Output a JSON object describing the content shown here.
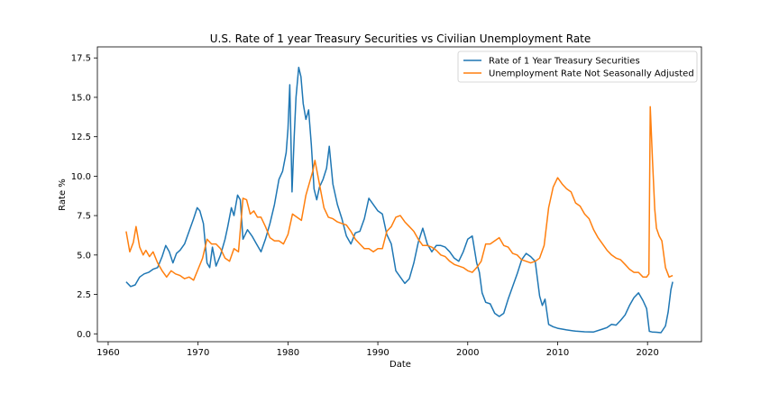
{
  "chart_data": {
    "type": "line",
    "title": "U.S. Rate of 1 year Treasury Securities vs Civilian Unemployment Rate",
    "xlabel": "Date",
    "ylabel": "Rate %",
    "xlim": [
      1958.8,
      2026.0
    ],
    "ylim": [
      -0.5,
      18.2
    ],
    "x_ticks": [
      1960,
      1970,
      1980,
      1990,
      2000,
      2010,
      2020
    ],
    "y_ticks": [
      0.0,
      2.5,
      5.0,
      7.5,
      10.0,
      12.5,
      15.0,
      17.5
    ],
    "x_tick_labels": [
      "1960",
      "1970",
      "1980",
      "1990",
      "2000",
      "2010",
      "2020"
    ],
    "y_tick_labels": [
      "0.0",
      "2.5",
      "5.0",
      "7.5",
      "10.0",
      "12.5",
      "15.0",
      "17.5"
    ],
    "grid": false,
    "legend_position": "upper-right",
    "series": [
      {
        "name": "Rate of 1 Year Treasury Securities",
        "color": "#1f77b4",
        "x": [
          1962.0,
          1962.5,
          1963.0,
          1963.5,
          1964.0,
          1964.5,
          1965.0,
          1965.5,
          1966.0,
          1966.4,
          1966.8,
          1967.2,
          1967.6,
          1968.0,
          1968.5,
          1969.0,
          1969.5,
          1969.9,
          1970.2,
          1970.6,
          1971.0,
          1971.3,
          1971.6,
          1972.0,
          1972.5,
          1973.0,
          1973.3,
          1973.7,
          1974.0,
          1974.4,
          1974.7,
          1975.0,
          1975.5,
          1976.0,
          1976.5,
          1977.0,
          1977.5,
          1978.0,
          1978.5,
          1979.0,
          1979.4,
          1979.8,
          1980.0,
          1980.2,
          1980.45,
          1980.7,
          1980.9,
          1981.2,
          1981.45,
          1981.7,
          1982.0,
          1982.3,
          1982.6,
          1982.9,
          1983.2,
          1983.5,
          1983.9,
          1984.3,
          1984.6,
          1985.0,
          1985.5,
          1986.0,
          1986.5,
          1987.0,
          1987.5,
          1988.0,
          1988.5,
          1989.0,
          1989.5,
          1990.0,
          1990.5,
          1991.0,
          1991.5,
          1992.0,
          1992.5,
          1993.0,
          1993.5,
          1994.0,
          1994.5,
          1995.0,
          1995.5,
          1996.0,
          1996.5,
          1997.0,
          1997.5,
          1998.0,
          1998.5,
          1999.0,
          1999.5,
          2000.0,
          2000.5,
          2001.0,
          2001.3,
          2001.6,
          2002.0,
          2002.5,
          2003.0,
          2003.5,
          2004.0,
          2004.5,
          2005.0,
          2005.5,
          2006.0,
          2006.5,
          2007.0,
          2007.5,
          2008.0,
          2008.3,
          2008.6,
          2009.0,
          2009.5,
          2010.0,
          2010.5,
          2011.0,
          2012.0,
          2013.0,
          2014.0,
          2015.0,
          2015.5,
          2016.0,
          2016.5,
          2017.0,
          2017.5,
          2018.0,
          2018.5,
          2019.0,
          2019.5,
          2019.9,
          2020.2,
          2020.5,
          2021.0,
          2021.5,
          2022.0,
          2022.3,
          2022.6,
          2022.8
        ],
        "values": [
          3.3,
          3.0,
          3.1,
          3.6,
          3.8,
          3.9,
          4.1,
          4.2,
          4.9,
          5.6,
          5.2,
          4.5,
          5.1,
          5.3,
          5.7,
          6.5,
          7.3,
          8.0,
          7.8,
          7.0,
          4.5,
          4.2,
          5.5,
          4.3,
          5.0,
          6.0,
          6.8,
          8.0,
          7.5,
          8.8,
          8.5,
          6.0,
          6.6,
          6.2,
          5.7,
          5.2,
          6.0,
          7.0,
          8.2,
          9.8,
          10.3,
          11.5,
          13.0,
          15.8,
          9.0,
          12.5,
          15.0,
          16.9,
          16.3,
          14.6,
          13.6,
          14.2,
          12.0,
          9.2,
          8.5,
          9.3,
          9.8,
          10.5,
          11.9,
          9.5,
          8.2,
          7.3,
          6.2,
          5.7,
          6.4,
          6.5,
          7.3,
          8.6,
          8.2,
          7.8,
          7.6,
          6.3,
          5.7,
          4.0,
          3.6,
          3.2,
          3.5,
          4.5,
          5.8,
          6.7,
          5.7,
          5.2,
          5.6,
          5.6,
          5.5,
          5.2,
          4.8,
          4.6,
          5.2,
          6.0,
          6.2,
          4.5,
          3.9,
          2.6,
          2.0,
          1.9,
          1.3,
          1.1,
          1.3,
          2.2,
          3.0,
          3.8,
          4.7,
          5.1,
          4.9,
          4.6,
          2.4,
          1.8,
          2.2,
          0.6,
          0.45,
          0.35,
          0.3,
          0.25,
          0.17,
          0.13,
          0.12,
          0.3,
          0.4,
          0.6,
          0.55,
          0.85,
          1.2,
          1.8,
          2.3,
          2.6,
          2.1,
          1.6,
          0.16,
          0.12,
          0.1,
          0.07,
          0.5,
          1.4,
          2.8,
          3.3
        ]
      },
      {
        "name": "Unemployment Rate Not Seasonally Adjusted",
        "color": "#ff7f0e",
        "x": [
          1962.0,
          1962.4,
          1962.8,
          1963.1,
          1963.5,
          1963.9,
          1964.2,
          1964.6,
          1965.0,
          1965.5,
          1966.0,
          1966.5,
          1967.0,
          1967.5,
          1968.0,
          1968.5,
          1969.0,
          1969.5,
          1970.0,
          1970.5,
          1971.0,
          1971.5,
          1972.0,
          1972.5,
          1973.0,
          1973.5,
          1974.0,
          1974.5,
          1975.0,
          1975.4,
          1975.8,
          1976.2,
          1976.6,
          1977.0,
          1977.5,
          1978.0,
          1978.5,
          1979.0,
          1979.5,
          1980.0,
          1980.5,
          1981.0,
          1981.5,
          1982.0,
          1982.4,
          1982.8,
          1983.0,
          1983.5,
          1984.0,
          1984.5,
          1985.0,
          1985.5,
          1986.0,
          1986.5,
          1987.0,
          1987.5,
          1988.0,
          1988.5,
          1989.0,
          1989.5,
          1990.0,
          1990.5,
          1991.0,
          1991.5,
          1992.0,
          1992.5,
          1993.0,
          1993.5,
          1994.0,
          1994.5,
          1995.0,
          1995.5,
          1996.0,
          1996.5,
          1997.0,
          1997.5,
          1998.0,
          1998.5,
          1999.0,
          1999.5,
          2000.0,
          2000.5,
          2001.0,
          2001.5,
          2002.0,
          2002.5,
          2003.0,
          2003.5,
          2004.0,
          2004.5,
          2005.0,
          2005.5,
          2006.0,
          2006.5,
          2007.0,
          2007.5,
          2008.0,
          2008.5,
          2009.0,
          2009.5,
          2010.0,
          2010.5,
          2011.0,
          2011.5,
          2012.0,
          2012.5,
          2013.0,
          2013.5,
          2014.0,
          2014.5,
          2015.0,
          2015.5,
          2016.0,
          2016.5,
          2017.0,
          2017.5,
          2018.0,
          2018.5,
          2019.0,
          2019.5,
          2019.9,
          2020.15,
          2020.3,
          2020.55,
          2020.8,
          2021.0,
          2021.3,
          2021.6,
          2022.0,
          2022.4,
          2022.8
        ],
        "values": [
          6.5,
          5.2,
          5.8,
          6.8,
          5.5,
          5.0,
          5.3,
          4.9,
          5.2,
          4.5,
          4.0,
          3.6,
          4.0,
          3.8,
          3.7,
          3.5,
          3.6,
          3.4,
          4.1,
          4.8,
          6.0,
          5.7,
          5.7,
          5.4,
          4.8,
          4.6,
          5.4,
          5.2,
          8.6,
          8.5,
          7.6,
          7.8,
          7.4,
          7.4,
          6.8,
          6.1,
          5.9,
          5.9,
          5.7,
          6.3,
          7.6,
          7.4,
          7.2,
          8.8,
          9.6,
          10.4,
          11.0,
          9.5,
          8.0,
          7.4,
          7.3,
          7.1,
          7.0,
          6.9,
          6.5,
          6.0,
          5.7,
          5.4,
          5.4,
          5.2,
          5.4,
          5.4,
          6.5,
          6.8,
          7.4,
          7.5,
          7.1,
          6.8,
          6.5,
          6.0,
          5.6,
          5.6,
          5.5,
          5.3,
          5.0,
          4.9,
          4.6,
          4.4,
          4.3,
          4.2,
          4.0,
          3.9,
          4.2,
          4.6,
          5.7,
          5.7,
          5.9,
          6.1,
          5.6,
          5.5,
          5.1,
          5.0,
          4.7,
          4.6,
          4.5,
          4.6,
          4.8,
          5.6,
          8.0,
          9.3,
          9.9,
          9.5,
          9.2,
          9.0,
          8.3,
          8.1,
          7.6,
          7.3,
          6.6,
          6.1,
          5.7,
          5.3,
          5.0,
          4.8,
          4.7,
          4.4,
          4.1,
          3.9,
          3.9,
          3.6,
          3.6,
          3.8,
          14.4,
          11.0,
          7.9,
          6.7,
          6.2,
          5.9,
          4.2,
          3.6,
          3.7
        ]
      }
    ]
  }
}
